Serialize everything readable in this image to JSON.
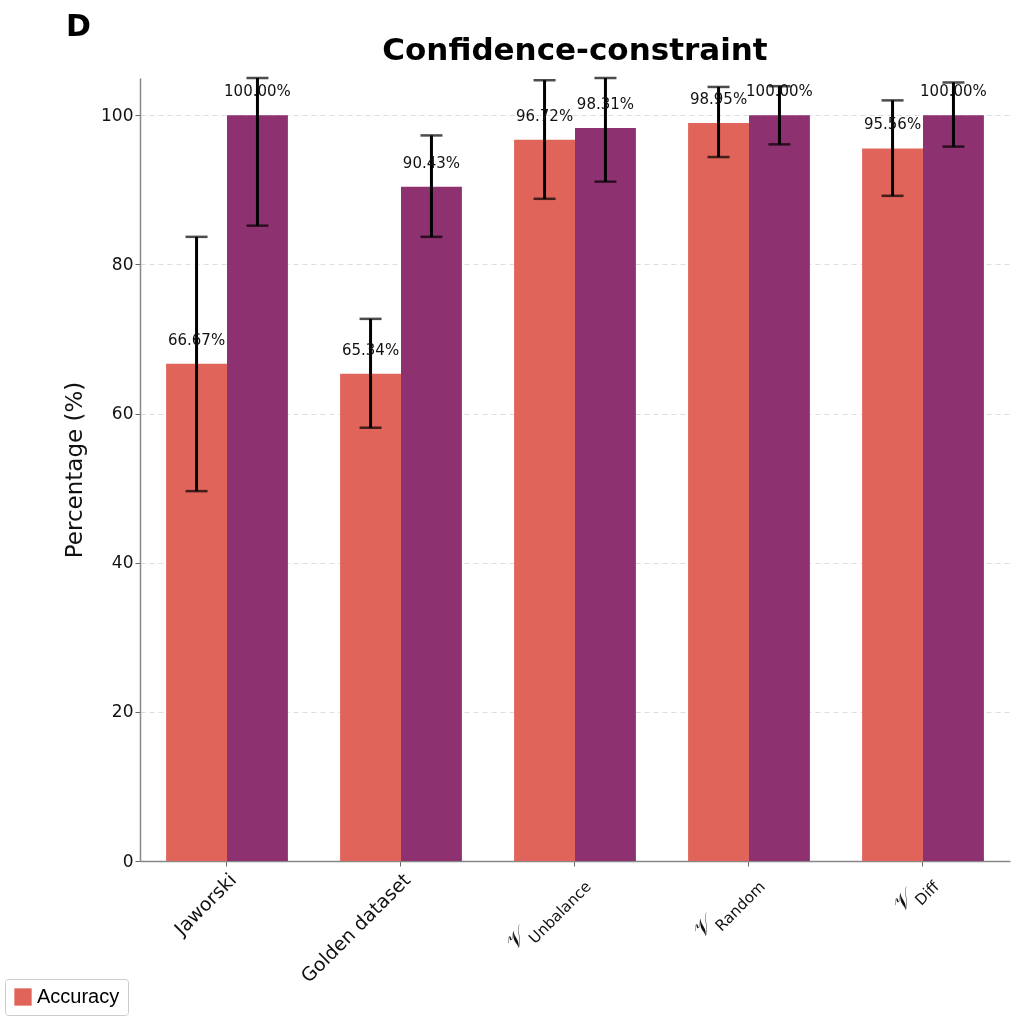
{
  "chart_data": {
    "type": "bar",
    "title": "Confidence-constraint",
    "ylabel": "Percentage (%)",
    "annotations": [
      "D"
    ],
    "categories": [
      "Jaworski",
      "Golden dataset",
      "𝒱$_{Unbalance}$",
      "𝒱$_{Random}$",
      "𝒱$_{Diff}$"
    ],
    "series": [
      {
        "name": "Accuracy",
        "color": "#e0645a",
        "values": [
          66.67,
          65.34,
          96.72,
          98.95,
          95.56
        ],
        "value_labels": [
          "66.67%",
          "65.34%",
          "96.72%",
          "98.95%",
          "95.56%"
        ],
        "errors": [
          [
            49.6,
            83.7
          ],
          [
            58.1,
            72.7
          ],
          [
            88.8,
            104.7
          ],
          [
            94.4,
            103.8
          ],
          [
            89.2,
            102.0
          ]
        ]
      },
      {
        "color": "#8e3170",
        "values": [
          100,
          90.43,
          98.31,
          100,
          100
        ],
        "value_labels": [
          "100.00%",
          "90.43%",
          "98.31%",
          "100.00%",
          "100.00%"
        ],
        "errors": [
          [
            85.2,
            105
          ],
          [
            83.7,
            97.3
          ],
          [
            91.1,
            105
          ],
          [
            96.1,
            103.9
          ],
          [
            95.8,
            104.4
          ]
        ]
      }
    ],
    "ylim": [
      0,
      105
    ],
    "yticks": [
      0,
      20,
      40,
      60,
      80,
      100
    ],
    "grid": "y",
    "legend": "bottom left"
  }
}
